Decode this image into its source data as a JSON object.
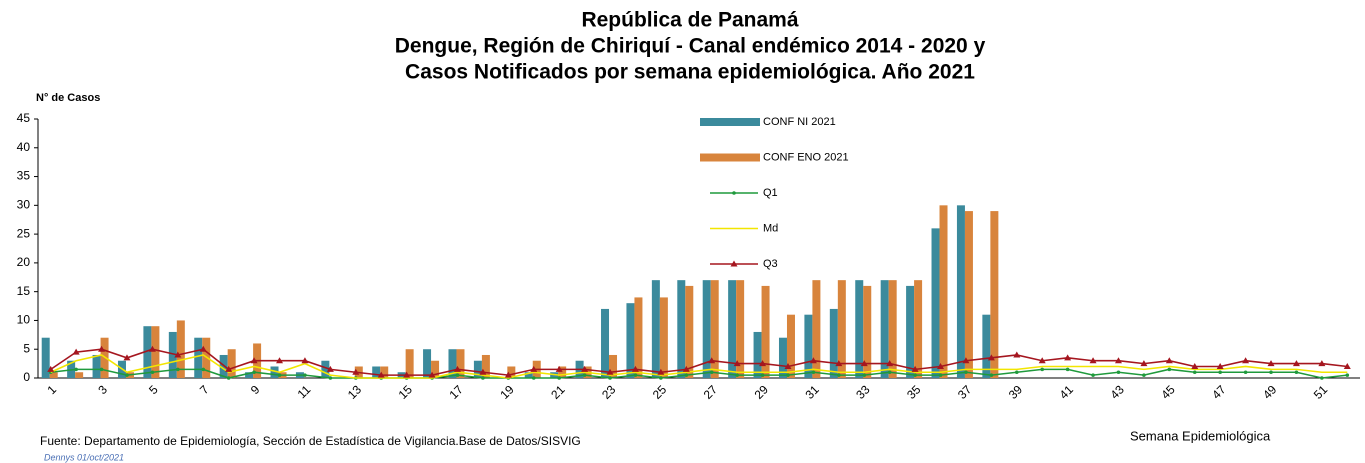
{
  "chart_data": {
    "type": "bar_line",
    "title": [
      "República de Panamá",
      "Dengue, Región de Chiriquí - Canal endémico 2014 - 2020 y",
      "Casos Notificados por semana epidemiológica. Año 2021"
    ],
    "y_label": "N° de Casos",
    "x_label": "Semana  Epidemiológica",
    "source": "Fuente: Departamento de Epidemiología, Sección de Estadística de Vigilancia.Base de Datos/SISVIG",
    "author_note": "Dennys  01/oct/2021",
    "categories": [
      "1",
      null,
      "3",
      null,
      "5",
      null,
      "7",
      null,
      "9",
      null,
      "11",
      null,
      "13",
      null,
      "15",
      null,
      "17",
      null,
      "19",
      null,
      "21",
      null,
      "23",
      null,
      "25",
      null,
      "27",
      null,
      "29",
      null,
      "31",
      null,
      "33",
      null,
      "35",
      null,
      "37",
      null,
      "39",
      null,
      "41",
      null,
      "43",
      null,
      "45",
      null,
      "47",
      null,
      "49",
      null,
      "51",
      null
    ],
    "ylim": [
      0,
      45
    ],
    "yticks": [
      0,
      5,
      10,
      15,
      20,
      25,
      30,
      35,
      40,
      45
    ],
    "grid": false,
    "series": [
      {
        "name": "CONF NI 2021",
        "kind": "bar",
        "color": "#3b8a9c",
        "values": [
          7,
          3,
          4,
          3,
          9,
          8,
          7,
          4,
          1,
          2,
          1,
          3,
          0,
          2,
          1,
          5,
          5,
          3,
          0,
          1,
          1,
          3,
          12,
          13,
          17,
          17,
          17,
          17,
          8,
          7,
          11,
          12,
          17,
          17,
          16,
          26,
          30,
          11,
          null,
          null,
          null,
          null,
          null,
          null,
          null,
          null,
          null,
          null,
          null,
          null,
          null,
          null
        ]
      },
      {
        "name": "CONF ENO 2021",
        "kind": "bar",
        "color": "#d8843c",
        "values": [
          1,
          1,
          7,
          1,
          9,
          10,
          7,
          5,
          6,
          1,
          0,
          0,
          2,
          2,
          5,
          3,
          5,
          4,
          2,
          3,
          2,
          2,
          4,
          14,
          14,
          16,
          17,
          17,
          16,
          11,
          17,
          17,
          16,
          17,
          17,
          30,
          29,
          29,
          null,
          null,
          null,
          null,
          null,
          null,
          null,
          null,
          null,
          null,
          null,
          null,
          null,
          null
        ]
      },
      {
        "name": "Q1",
        "kind": "line",
        "color": "#1f9a3c",
        "marker": "dot",
        "values": [
          1,
          1.5,
          1.5,
          0.5,
          1,
          1.5,
          1.5,
          0,
          1,
          0.5,
          0.5,
          0,
          0,
          0,
          0,
          0,
          0.5,
          0,
          0,
          0,
          0,
          0.5,
          0,
          0.5,
          0,
          0.5,
          1,
          0.5,
          0.5,
          0.5,
          1,
          0.5,
          0.5,
          1,
          0.5,
          0.5,
          1,
          0.5,
          1,
          1.5,
          1.5,
          0.5,
          1,
          0.5,
          1.5,
          1,
          1,
          1,
          1,
          1,
          0,
          0.5
        ]
      },
      {
        "name": "Md",
        "kind": "line",
        "color": "#f2e600",
        "marker": "none",
        "values": [
          1,
          3,
          4,
          1,
          2,
          3,
          4,
          1,
          2,
          1,
          2.5,
          0.5,
          0,
          0,
          0,
          0,
          1,
          0.5,
          0,
          1,
          0.5,
          1,
          0.5,
          1,
          0.5,
          1,
          1.5,
          1,
          1,
          1,
          1.5,
          1,
          1,
          1.5,
          1,
          1,
          1.5,
          1.5,
          1.5,
          2,
          2,
          2,
          2,
          1.5,
          2,
          1.5,
          1.5,
          2,
          1.5,
          1.5,
          1,
          1
        ]
      },
      {
        "name": "Q3",
        "kind": "line",
        "color": "#a5161f",
        "marker": "triangle",
        "values": [
          1.5,
          4.5,
          5,
          3.5,
          5,
          4,
          5,
          1.5,
          3,
          3,
          3,
          1.5,
          1,
          0.5,
          0.5,
          0.5,
          1.5,
          1,
          0.5,
          1.5,
          1.5,
          1.5,
          1,
          1.5,
          1,
          1.5,
          3,
          2.5,
          2.5,
          2,
          3,
          2.5,
          2.5,
          2.5,
          1.5,
          2,
          3,
          3.5,
          4,
          3,
          3.5,
          3,
          3,
          2.5,
          3,
          2,
          2,
          3,
          2.5,
          2.5,
          2.5,
          2
        ]
      }
    ]
  }
}
